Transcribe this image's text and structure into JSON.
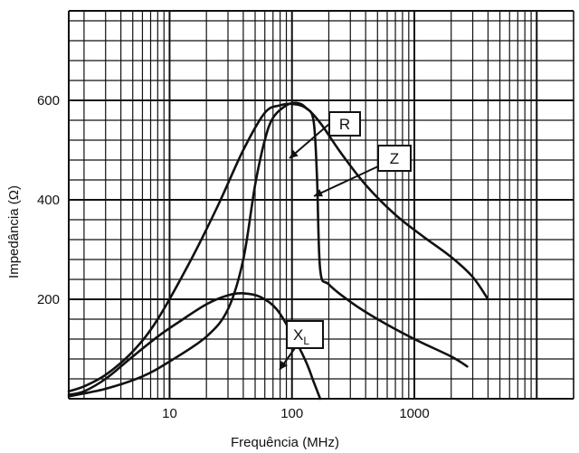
{
  "chart_data": {
    "type": "line",
    "xlabel": "Frequência (MHz)",
    "ylabel": "Impedância (Ω)",
    "x_scale": "log",
    "xlim": [
      1.5,
      20000
    ],
    "ylim": [
      0,
      780
    ],
    "x_ticks": [
      10,
      100,
      1000
    ],
    "x_tick_labels": [
      "10",
      "100",
      "1000"
    ],
    "y_ticks": [
      200,
      400,
      600
    ],
    "y_tick_labels": [
      "200",
      "400",
      "600"
    ],
    "grid": true,
    "series": [
      {
        "name": "Z",
        "points": [
          [
            1.5,
            15
          ],
          [
            2,
            25
          ],
          [
            3,
            48
          ],
          [
            5,
            95
          ],
          [
            8,
            160
          ],
          [
            15,
            280
          ],
          [
            25,
            390
          ],
          [
            40,
            500
          ],
          [
            60,
            575
          ],
          [
            80,
            590
          ],
          [
            100,
            593
          ],
          [
            130,
            585
          ],
          [
            170,
            555
          ],
          [
            250,
            495
          ],
          [
            400,
            430
          ],
          [
            700,
            370
          ],
          [
            1200,
            325
          ],
          [
            2000,
            285
          ],
          [
            3000,
            245
          ],
          [
            4000,
            200
          ]
        ]
      },
      {
        "name": "R",
        "points": [
          [
            1.5,
            5
          ],
          [
            3,
            20
          ],
          [
            6,
            45
          ],
          [
            10,
            75
          ],
          [
            20,
            125
          ],
          [
            30,
            180
          ],
          [
            40,
            280
          ],
          [
            50,
            430
          ],
          [
            60,
            520
          ],
          [
            70,
            565
          ],
          [
            90,
            590
          ],
          [
            110,
            595
          ],
          [
            130,
            585
          ],
          [
            150,
            560
          ],
          [
            160,
            450
          ],
          [
            170,
            260
          ],
          [
            200,
            230
          ],
          [
            300,
            195
          ],
          [
            500,
            160
          ],
          [
            1000,
            120
          ],
          [
            2000,
            85
          ],
          [
            2700,
            65
          ]
        ]
      },
      {
        "name": "XL",
        "points": [
          [
            1.5,
            8
          ],
          [
            2,
            15
          ],
          [
            3,
            40
          ],
          [
            5,
            85
          ],
          [
            8,
            125
          ],
          [
            12,
            155
          ],
          [
            20,
            190
          ],
          [
            30,
            208
          ],
          [
            40,
            212
          ],
          [
            55,
            205
          ],
          [
            75,
            180
          ],
          [
            100,
            130
          ],
          [
            130,
            75
          ],
          [
            150,
            35
          ],
          [
            170,
            0
          ]
        ]
      }
    ],
    "annotations": [
      {
        "text": "R",
        "series": "R"
      },
      {
        "text": "Z",
        "series": "Z"
      },
      {
        "text": "X",
        "sub": "L",
        "series": "XL"
      }
    ]
  }
}
